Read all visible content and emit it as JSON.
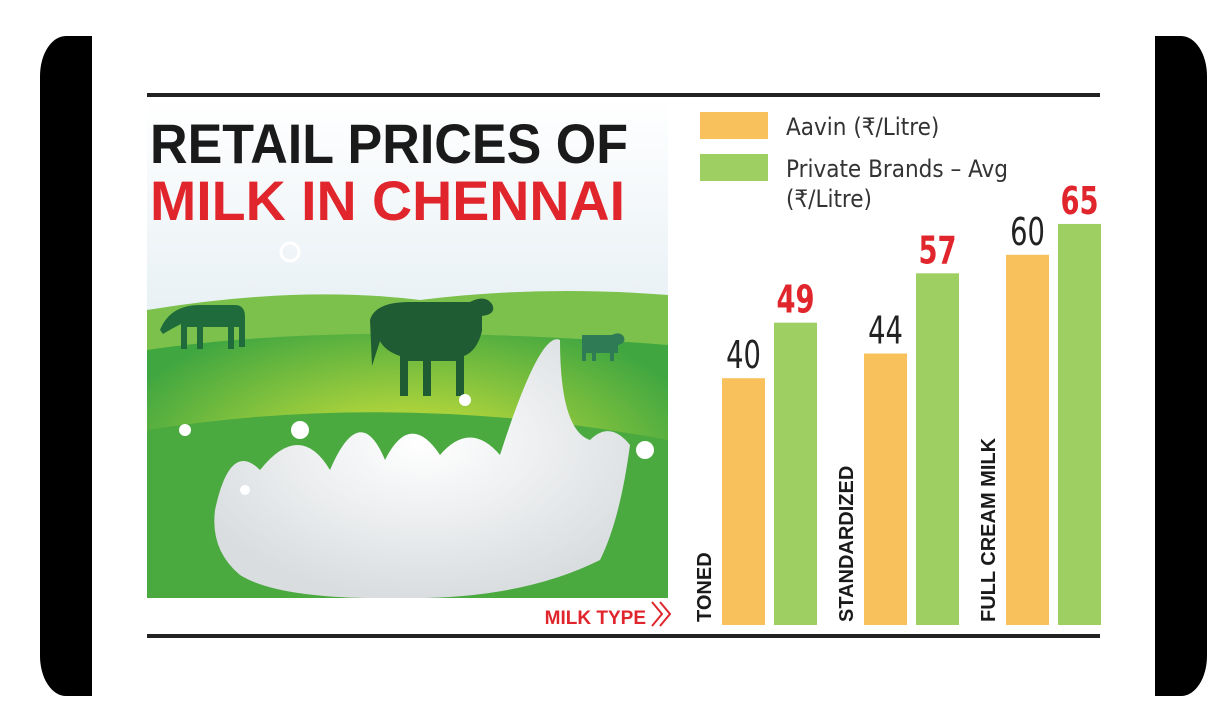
{
  "chart_data": {
    "type": "bar",
    "title": [
      "RETAIL PRICES OF",
      "MILK IN CHENNAI"
    ],
    "x_label": "MILK TYPE",
    "categories": [
      "TONED",
      "STANDARDIZED",
      "FULL CREAM MILK"
    ],
    "series": [
      {
        "name": "Aavin (₹/Litre)",
        "color": "#f9c15c",
        "values": [
          40,
          44,
          60
        ]
      },
      {
        "name": "Private Brands – Avg (₹/Litre)",
        "color": "#9dcf62",
        "values": [
          49,
          57,
          65
        ]
      }
    ]
  }
}
